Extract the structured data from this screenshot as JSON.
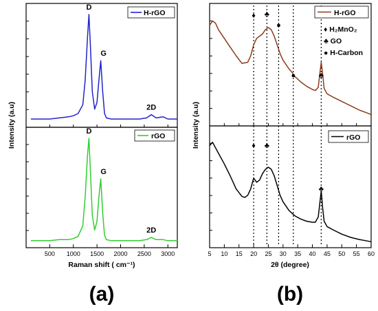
{
  "chart_data": [
    {
      "type": "line",
      "panel_label": "(a)",
      "xlabel": "Raman shift ( cm⁻¹)",
      "ylabel": "Intensity (a.u)",
      "xlim": [
        0,
        3200
      ],
      "x_ticks": [
        500,
        1000,
        1500,
        2000,
        2500,
        3000
      ],
      "subplots": [
        {
          "legend": "H-rGO",
          "legend_position": "top-right",
          "color": "#2222cc",
          "x": [
            100,
            300,
            500,
            700,
            900,
            1000,
            1100,
            1200,
            1250,
            1300,
            1330,
            1360,
            1400,
            1450,
            1500,
            1540,
            1580,
            1620,
            1660,
            1700,
            1800,
            1900,
            2000,
            2200,
            2400,
            2550,
            2650,
            2750,
            2900,
            3000,
            3200
          ],
          "values": [
            0.05,
            0.05,
            0.05,
            0.06,
            0.07,
            0.08,
            0.1,
            0.18,
            0.4,
            0.8,
            1.0,
            0.72,
            0.3,
            0.14,
            0.2,
            0.4,
            0.58,
            0.3,
            0.1,
            0.06,
            0.05,
            0.05,
            0.05,
            0.05,
            0.05,
            0.06,
            0.09,
            0.06,
            0.07,
            0.05,
            0.05
          ],
          "annotations": [
            {
              "text": "D",
              "x": 1330,
              "y": 1.0
            },
            {
              "text": "G",
              "x": 1580,
              "y": 0.58
            },
            {
              "text": "2D",
              "x": 2650,
              "y": 0.09
            }
          ]
        },
        {
          "legend": "rGO",
          "legend_position": "top-right",
          "color": "#33cc33",
          "x": [
            100,
            300,
            500,
            700,
            900,
            1000,
            1100,
            1200,
            1250,
            1300,
            1330,
            1360,
            1400,
            1450,
            1500,
            1540,
            1580,
            1620,
            1660,
            1700,
            1800,
            1900,
            2000,
            2200,
            2400,
            2550,
            2650,
            2750,
            2900,
            3000,
            3200
          ],
          "values": [
            0.04,
            0.04,
            0.04,
            0.05,
            0.05,
            0.06,
            0.08,
            0.18,
            0.45,
            0.85,
            1.0,
            0.7,
            0.28,
            0.14,
            0.22,
            0.45,
            0.62,
            0.3,
            0.09,
            0.05,
            0.04,
            0.04,
            0.04,
            0.04,
            0.04,
            0.05,
            0.07,
            0.05,
            0.05,
            0.04,
            0.04
          ],
          "annotations": [
            {
              "text": "D",
              "x": 1330,
              "y": 1.0
            },
            {
              "text": "G",
              "x": 1580,
              "y": 0.62
            },
            {
              "text": "2D",
              "x": 2650,
              "y": 0.07
            }
          ]
        }
      ]
    },
    {
      "type": "line",
      "panel_label": "(b)",
      "xlabel": "2θ (degree)",
      "ylabel": "Intensity (a.u)",
      "xlim": [
        5,
        60
      ],
      "x_ticks": [
        5,
        10,
        15,
        20,
        25,
        30,
        35,
        40,
        45,
        50,
        55,
        60
      ],
      "reference_lines_x": [
        20,
        24.5,
        28.5,
        33.5,
        43
      ],
      "marker_legend": [
        "♦ H₂MnO₂",
        "♣ GO",
        "● H-Carbon"
      ],
      "subplots": [
        {
          "legend": "H-rGO",
          "legend_position": "top-right",
          "color": "#8b3a1a",
          "x": [
            5,
            6,
            7,
            8,
            10,
            12,
            14,
            16,
            18,
            19,
            20,
            21,
            22,
            23,
            24,
            25,
            26,
            27,
            28,
            29,
            30,
            32,
            33,
            34,
            36,
            38,
            40,
            41,
            42,
            42.5,
            43,
            43.5,
            44,
            45,
            47,
            50,
            53,
            56,
            58,
            60
          ],
          "values": [
            0.9,
            0.94,
            0.92,
            0.86,
            0.78,
            0.7,
            0.62,
            0.55,
            0.56,
            0.62,
            0.72,
            0.78,
            0.8,
            0.82,
            0.86,
            0.88,
            0.86,
            0.8,
            0.72,
            0.64,
            0.58,
            0.5,
            0.47,
            0.43,
            0.38,
            0.34,
            0.31,
            0.3,
            0.33,
            0.45,
            0.56,
            0.45,
            0.32,
            0.27,
            0.24,
            0.2,
            0.16,
            0.12,
            0.1,
            0.08
          ]
        },
        {
          "legend": "rGO",
          "legend_position": "top-right",
          "color": "#000000",
          "x": [
            5,
            6,
            7,
            8,
            10,
            12,
            14,
            16,
            17,
            18,
            19,
            20,
            21,
            22,
            23,
            24,
            25,
            26,
            27,
            28,
            29,
            30,
            32,
            34,
            36,
            38,
            40,
            41,
            42,
            42.5,
            43,
            43.5,
            44,
            45,
            47,
            50,
            53,
            56,
            58,
            60
          ],
          "values": [
            0.92,
            0.95,
            0.9,
            0.85,
            0.75,
            0.64,
            0.52,
            0.45,
            0.44,
            0.46,
            0.52,
            0.62,
            0.58,
            0.6,
            0.66,
            0.7,
            0.72,
            0.7,
            0.64,
            0.55,
            0.46,
            0.4,
            0.32,
            0.27,
            0.24,
            0.22,
            0.21,
            0.21,
            0.26,
            0.38,
            0.5,
            0.34,
            0.22,
            0.17,
            0.14,
            0.1,
            0.07,
            0.05,
            0.04,
            0.03
          ]
        }
      ]
    }
  ]
}
